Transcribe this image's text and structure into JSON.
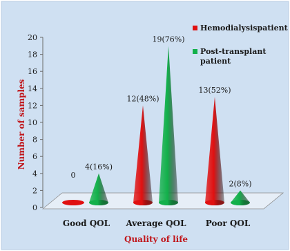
{
  "chart_data": {
    "type": "bar",
    "style": "3d-cone",
    "categories": [
      "Good QOL",
      "Average QOL",
      "Poor QOL"
    ],
    "series": [
      {
        "name": "Hemodialysispatient",
        "color": "#e01010",
        "values": [
          0,
          12,
          13
        ],
        "labels": [
          "0",
          "12(48%)",
          "13(52%)"
        ]
      },
      {
        "name": "Post-transplant patient",
        "legend_lines": [
          "Post-transplant",
          "patient"
        ],
        "color": "#12b04a",
        "values": [
          4,
          19,
          2
        ],
        "labels": [
          "4(16%)",
          "19(76%)",
          "2(8%)"
        ]
      }
    ],
    "title": "",
    "xlabel": "Quality of life",
    "ylabel": "Number of samples",
    "ylim": [
      0,
      20
    ],
    "yticks": [
      0,
      2,
      4,
      6,
      8,
      10,
      12,
      14,
      16,
      18,
      20
    ],
    "grid": false,
    "legend_position": "top-right",
    "background_color": "#cfe0f2",
    "axis_label_color": "#c0161b"
  }
}
